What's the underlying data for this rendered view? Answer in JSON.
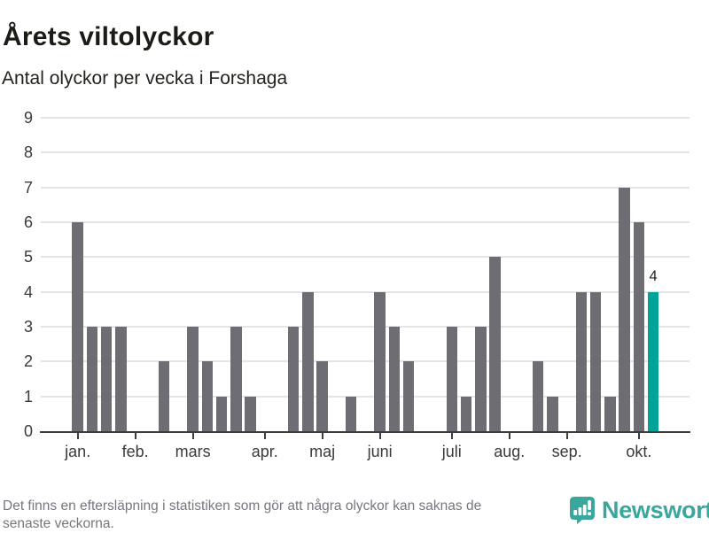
{
  "header": {
    "title": "Årets viltolyckor",
    "subtitle": "Antal olyckor per vecka i Forshaga"
  },
  "chart_data": {
    "type": "bar",
    "title": "Årets viltolyckor",
    "subtitle": "Antal olyckor per vecka i Forshaga",
    "xlabel": "",
    "ylabel": "Antal olyckor per vecka",
    "x_unit": "vecka (1-41, jan.-okt.)",
    "ylim": [
      0,
      9
    ],
    "y_ticks": [
      0,
      1,
      2,
      3,
      4,
      5,
      6,
      7,
      8,
      9
    ],
    "grid": true,
    "values": [
      6,
      3,
      3,
      3,
      0,
      0,
      2,
      0,
      3,
      2,
      1,
      3,
      1,
      0,
      0,
      3,
      4,
      2,
      0,
      1,
      0,
      4,
      3,
      2,
      0,
      0,
      3,
      1,
      3,
      5,
      0,
      0,
      2,
      1,
      0,
      4,
      4,
      1,
      7,
      6,
      4
    ],
    "month_ticks": [
      {
        "label": "jan.",
        "week": 1
      },
      {
        "label": "feb.",
        "week": 5
      },
      {
        "label": "mars",
        "week": 9
      },
      {
        "label": "apr.",
        "week": 14
      },
      {
        "label": "maj",
        "week": 18
      },
      {
        "label": "juni",
        "week": 22
      },
      {
        "label": "juli",
        "week": 27
      },
      {
        "label": "aug.",
        "week": 31
      },
      {
        "label": "sep.",
        "week": 35
      },
      {
        "label": "okt.",
        "week": 40
      }
    ],
    "highlight_last_bar": true,
    "last_bar_label": "4",
    "colors": {
      "bar": "#6d6d73",
      "highlight": "#00a29a",
      "gridline": "#e4e4e4",
      "axis": "#3d3d3d"
    }
  },
  "footer": {
    "line1": "Det finns en eftersläpning i statistiken som gör att några olyckor kan saknas de",
    "line2": "senaste veckorna.",
    "brand": "Newsworthy"
  }
}
